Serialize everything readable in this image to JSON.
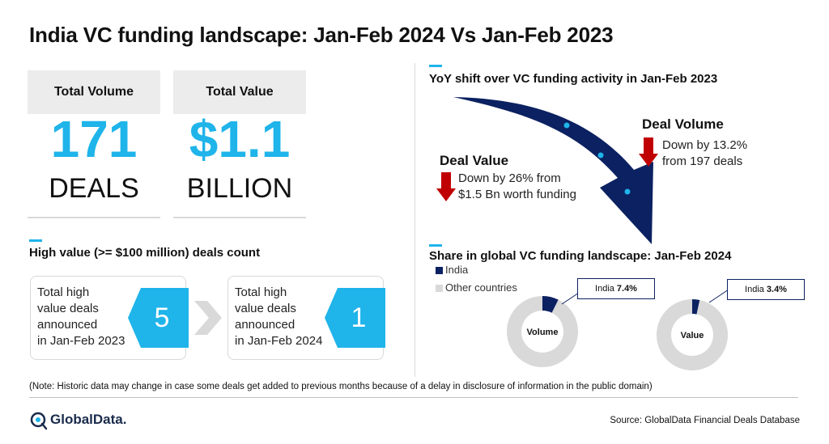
{
  "title": "India VC funding landscape: Jan-Feb 2024 Vs Jan-Feb 2023",
  "kpis": [
    {
      "label": "Total Volume",
      "value": "171",
      "unit": "DEALS"
    },
    {
      "label": "Total Value",
      "value": "$1.1",
      "unit": "BILLION"
    }
  ],
  "high_value": {
    "heading": "High value (>= $100 million) deals count",
    "items": [
      {
        "text": [
          "Total high",
          "value deals",
          "announced",
          "in Jan-Feb 2023"
        ],
        "count": "5"
      },
      {
        "text": [
          "Total high",
          "value deals",
          "announced",
          "in Jan-Feb 2024"
        ],
        "count": "1"
      }
    ]
  },
  "yoy": {
    "heading": "YoY shift over VC funding activity in Jan-Feb 2023",
    "deal_value": {
      "title": "Deal Value",
      "line1": "Down by 26% from",
      "line2": "$1.5 Bn worth funding"
    },
    "deal_volume": {
      "title": "Deal Volume",
      "line1": "Down by 13.2%",
      "line2": "from 197 deals"
    }
  },
  "share": {
    "heading": "Share in global VC funding landscape: Jan-Feb 2024",
    "legend": [
      "India",
      "Other countries"
    ],
    "donut_volume": {
      "label": "Volume",
      "callout_name": "India",
      "callout_value": "7.4%"
    },
    "donut_value": {
      "label": "Value",
      "callout_name": "India",
      "callout_value": "3.4%"
    }
  },
  "colors": {
    "accent": "#1fb4ea",
    "navy": "#0b2161",
    "red": "#c00000",
    "grey": "#d9d9d9"
  },
  "chart_data": [
    {
      "type": "pie",
      "title": "Volume",
      "categories": [
        "India",
        "Other countries"
      ],
      "values": [
        7.4,
        92.6
      ]
    },
    {
      "type": "pie",
      "title": "Value",
      "categories": [
        "India",
        "Other countries"
      ],
      "values": [
        3.4,
        96.6
      ]
    }
  ],
  "note": "(Note: Historic data may change in case some deals get added to previous months because of a delay in disclosure of information in the public domain)",
  "brand": "GlobalData.",
  "source": "Source: GlobalData Financial Deals Database"
}
